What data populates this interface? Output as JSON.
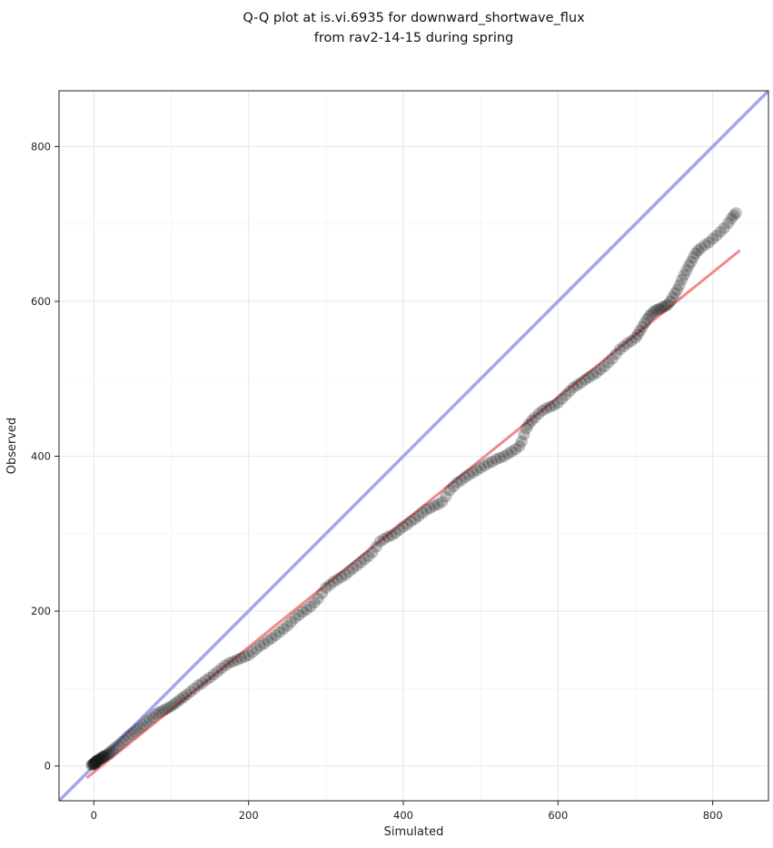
{
  "chart_data": {
    "type": "scatter",
    "title_line1": "Q-Q plot at is.vi.6935 for downward_shortwave_flux",
    "title_line2": "from rav2-14-15 during spring",
    "xlabel": "Simulated",
    "ylabel": "Observed",
    "xlim": [
      -45,
      872
    ],
    "ylim": [
      -45,
      872
    ],
    "xticks": [
      0,
      200,
      400,
      600,
      800
    ],
    "yticks": [
      0,
      200,
      400,
      600,
      800
    ],
    "grid": {
      "show": true,
      "minor_step": 100,
      "major_color": "#e7e7e7",
      "minor_color": "#f3f3f3"
    },
    "colors": {
      "identity_line": "#a3a6f0",
      "fit_line": "#f08a8a",
      "points": "#1a1a1a",
      "spine": "#222222"
    },
    "series": [
      {
        "name": "identity-line",
        "kind": "line",
        "color_key": "identity_line",
        "width": 3.5,
        "x": [
          -45,
          872
        ],
        "y": [
          -45,
          872
        ]
      },
      {
        "name": "fit-line",
        "kind": "line",
        "color_key": "fit_line",
        "width": 3,
        "x": [
          -8,
          834
        ],
        "y": [
          -14.5,
          665
        ]
      },
      {
        "name": "qq-quantiles",
        "kind": "scatter",
        "color_key": "points",
        "alpha": 0.28,
        "marker_radius": 6.5,
        "points": [
          [
            -3,
            1
          ],
          [
            -2,
            2
          ],
          [
            -1,
            2
          ],
          [
            0,
            2
          ],
          [
            0,
            3
          ],
          [
            1,
            3
          ],
          [
            1,
            4
          ],
          [
            2,
            4
          ],
          [
            2,
            5
          ],
          [
            3,
            5
          ],
          [
            3,
            6
          ],
          [
            4,
            6
          ],
          [
            4,
            7
          ],
          [
            5,
            7
          ],
          [
            6,
            8
          ],
          [
            7,
            8
          ],
          [
            8,
            9
          ],
          [
            9,
            10
          ],
          [
            10,
            10
          ],
          [
            11,
            11
          ],
          [
            12,
            12
          ],
          [
            13,
            12
          ],
          [
            14,
            13
          ],
          [
            16,
            14
          ],
          [
            18,
            15
          ],
          [
            20,
            17
          ],
          [
            22,
            19
          ],
          [
            25,
            21
          ],
          [
            28,
            24
          ],
          [
            32,
            27
          ],
          [
            36,
            31
          ],
          [
            40,
            34
          ],
          [
            44,
            38
          ],
          [
            48,
            41
          ],
          [
            52,
            44
          ],
          [
            56,
            47
          ],
          [
            60,
            50
          ],
          [
            64,
            53
          ],
          [
            68,
            57
          ],
          [
            72,
            60
          ],
          [
            76,
            63
          ],
          [
            80,
            67
          ],
          [
            84,
            69
          ],
          [
            88,
            71
          ],
          [
            92,
            73
          ],
          [
            96,
            75
          ],
          [
            100,
            77
          ],
          [
            104,
            80
          ],
          [
            108,
            83
          ],
          [
            112,
            86
          ],
          [
            116,
            89
          ],
          [
            120,
            92
          ],
          [
            125,
            96
          ],
          [
            130,
            100
          ],
          [
            135,
            104
          ],
          [
            140,
            107
          ],
          [
            145,
            111
          ],
          [
            150,
            114
          ],
          [
            155,
            118
          ],
          [
            160,
            122
          ],
          [
            165,
            126
          ],
          [
            170,
            130
          ],
          [
            175,
            133
          ],
          [
            180,
            135
          ],
          [
            185,
            137
          ],
          [
            190,
            139
          ],
          [
            195,
            141
          ],
          [
            200,
            143
          ],
          [
            205,
            147
          ],
          [
            210,
            151
          ],
          [
            215,
            155
          ],
          [
            220,
            158
          ],
          [
            225,
            162
          ],
          [
            230,
            165
          ],
          [
            235,
            169
          ],
          [
            240,
            173
          ],
          [
            245,
            177
          ],
          [
            250,
            181
          ],
          [
            255,
            186
          ],
          [
            260,
            191
          ],
          [
            265,
            195
          ],
          [
            270,
            199
          ],
          [
            275,
            202
          ],
          [
            280,
            206
          ],
          [
            285,
            211
          ],
          [
            290,
            216
          ],
          [
            295,
            223
          ],
          [
            300,
            230
          ],
          [
            305,
            234
          ],
          [
            310,
            238
          ],
          [
            315,
            241
          ],
          [
            320,
            244
          ],
          [
            325,
            247
          ],
          [
            330,
            251
          ],
          [
            335,
            255
          ],
          [
            340,
            259
          ],
          [
            345,
            263
          ],
          [
            350,
            267
          ],
          [
            355,
            271
          ],
          [
            360,
            276
          ],
          [
            365,
            283
          ],
          [
            370,
            290
          ],
          [
            375,
            293
          ],
          [
            380,
            296
          ],
          [
            385,
            298
          ],
          [
            390,
            301
          ],
          [
            395,
            305
          ],
          [
            400,
            309
          ],
          [
            405,
            312
          ],
          [
            410,
            316
          ],
          [
            415,
            319
          ],
          [
            420,
            323
          ],
          [
            425,
            327
          ],
          [
            430,
            331
          ],
          [
            435,
            333
          ],
          [
            440,
            336
          ],
          [
            445,
            338
          ],
          [
            450,
            341
          ],
          [
            455,
            348
          ],
          [
            460,
            356
          ],
          [
            465,
            361
          ],
          [
            470,
            366
          ],
          [
            475,
            369
          ],
          [
            480,
            373
          ],
          [
            485,
            376
          ],
          [
            490,
            379
          ],
          [
            495,
            382
          ],
          [
            500,
            385
          ],
          [
            505,
            388
          ],
          [
            510,
            391
          ],
          [
            515,
            393
          ],
          [
            520,
            396
          ],
          [
            525,
            398
          ],
          [
            530,
            400
          ],
          [
            535,
            403
          ],
          [
            540,
            406
          ],
          [
            545,
            409
          ],
          [
            550,
            413
          ],
          [
            553,
            419
          ],
          [
            556,
            428
          ],
          [
            559,
            436
          ],
          [
            562,
            441
          ],
          [
            566,
            446
          ],
          [
            570,
            450
          ],
          [
            575,
            455
          ],
          [
            580,
            459
          ],
          [
            585,
            462
          ],
          [
            590,
            464
          ],
          [
            595,
            466
          ],
          [
            600,
            469
          ],
          [
            605,
            474
          ],
          [
            610,
            479
          ],
          [
            615,
            484
          ],
          [
            620,
            489
          ],
          [
            625,
            492
          ],
          [
            630,
            495
          ],
          [
            635,
            499
          ],
          [
            640,
            502
          ],
          [
            645,
            505
          ],
          [
            650,
            508
          ],
          [
            655,
            512
          ],
          [
            660,
            516
          ],
          [
            665,
            521
          ],
          [
            670,
            526
          ],
          [
            675,
            532
          ],
          [
            680,
            538
          ],
          [
            685,
            542
          ],
          [
            690,
            546
          ],
          [
            695,
            549
          ],
          [
            700,
            553
          ],
          [
            703,
            557
          ],
          [
            706,
            562
          ],
          [
            709,
            567
          ],
          [
            712,
            572
          ],
          [
            715,
            577
          ],
          [
            718,
            581
          ],
          [
            721,
            584
          ],
          [
            724,
            587
          ],
          [
            727,
            589
          ],
          [
            730,
            590
          ],
          [
            733,
            591
          ],
          [
            736,
            593
          ],
          [
            739,
            594
          ],
          [
            742,
            596
          ],
          [
            745,
            600
          ],
          [
            748,
            605
          ],
          [
            751,
            610
          ],
          [
            754,
            615
          ],
          [
            757,
            621
          ],
          [
            760,
            628
          ],
          [
            763,
            634
          ],
          [
            766,
            640
          ],
          [
            769,
            646
          ],
          [
            772,
            651
          ],
          [
            775,
            657
          ],
          [
            778,
            662
          ],
          [
            781,
            666
          ],
          [
            785,
            669
          ],
          [
            790,
            673
          ],
          [
            795,
            676
          ],
          [
            800,
            681
          ],
          [
            805,
            685
          ],
          [
            810,
            690
          ],
          [
            815,
            695
          ],
          [
            820,
            701
          ],
          [
            824,
            707
          ],
          [
            827,
            711
          ],
          [
            830,
            714
          ]
        ]
      }
    ]
  }
}
